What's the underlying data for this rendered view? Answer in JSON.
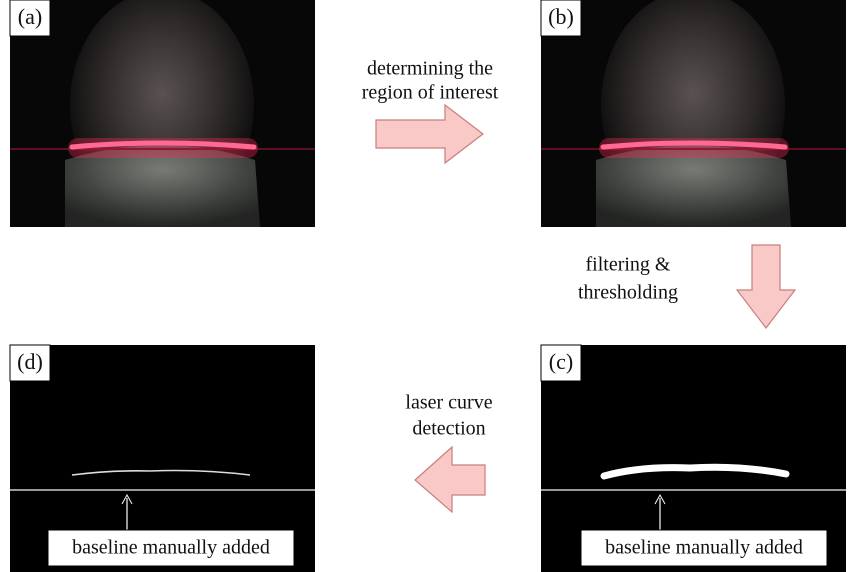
{
  "panels": [
    {
      "label": "(a)"
    },
    {
      "label": "(b)"
    },
    {
      "label": "(c)",
      "annotation": "baseline manually added"
    },
    {
      "label": "(d)",
      "annotation": "baseline manually added"
    }
  ],
  "steps": [
    {
      "lines": [
        "determining the",
        "region of interest"
      ]
    },
    {
      "lines": [
        "filtering &",
        "thresholding"
      ]
    },
    {
      "lines": [
        "laser curve",
        "detection"
      ]
    }
  ]
}
